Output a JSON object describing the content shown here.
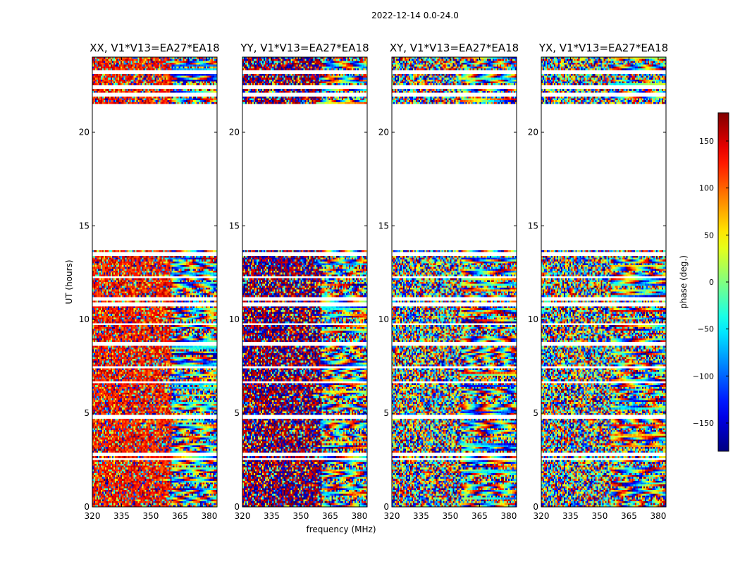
{
  "chart_data": {
    "type": "heatmap",
    "title": "2022-12-14 0.0-24.0",
    "xlabel": "frequency (MHz)",
    "ylabel": "UT (hours)",
    "xlim": [
      320,
      384
    ],
    "ylim": [
      0,
      24
    ],
    "xticks": [
      "320",
      "335",
      "350",
      "365",
      "380"
    ],
    "yticks": [
      "0",
      "5",
      "10",
      "15",
      "20"
    ],
    "panels": [
      {
        "title": "XX, V1*V13=EA27*EA18",
        "pol": "XX",
        "tint": 130
      },
      {
        "title": "YY, V1*V13=EA27*EA18",
        "pol": "YY",
        "tint": 175
      },
      {
        "title": "XY, V1*V13=EA27*EA18",
        "pol": "XY",
        "tint": 0
      },
      {
        "title": "YX, V1*V13=EA27*EA18",
        "pol": "YX",
        "tint": 0
      }
    ],
    "colorbar": {
      "label": "phase (deg.)",
      "range": [
        -180,
        180
      ],
      "ticks": [
        "150",
        "100",
        "50",
        "0",
        "−50",
        "−100",
        "−150"
      ],
      "tick_values": [
        150,
        100,
        50,
        0,
        -50,
        -100,
        -150
      ],
      "colormap": "jet"
    },
    "data_gaps_hours": [
      [
        0.0,
        0.02
      ],
      [
        1.85,
        1.95
      ],
      [
        2.45,
        2.55
      ],
      [
        2.75,
        2.9
      ],
      [
        4.7,
        4.85
      ],
      [
        6.6,
        6.7
      ],
      [
        7.4,
        7.5
      ],
      [
        8.6,
        8.75
      ],
      [
        9.7,
        9.8
      ],
      [
        10.75,
        10.85
      ],
      [
        11.05,
        11.15
      ],
      [
        12.15,
        12.25
      ],
      [
        13.45,
        13.55
      ],
      [
        13.75,
        21.5
      ],
      [
        21.95,
        22.05
      ],
      [
        22.35,
        22.45
      ],
      [
        23.15,
        23.3
      ]
    ]
  }
}
